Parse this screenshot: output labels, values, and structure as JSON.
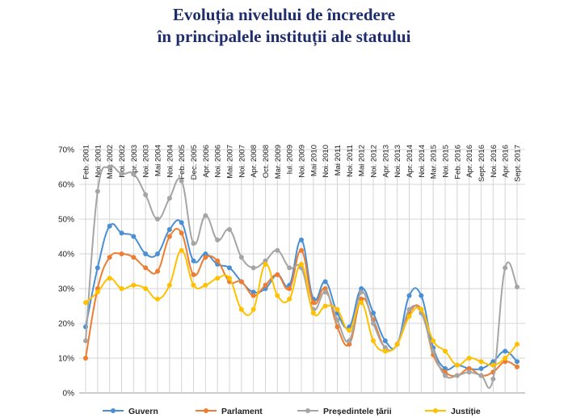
{
  "title_line1": "Evoluția nivelului de încredere",
  "title_line2": "în principalele instituții ale statului",
  "chart_data": {
    "type": "line",
    "title": "Evoluția nivelului de încredere în principalele instituții ale statului",
    "xlabel": "",
    "ylabel": "",
    "ylim": [
      0,
      70
    ],
    "yticks": [
      "0%",
      "10%",
      "20%",
      "30%",
      "40%",
      "50%",
      "60%",
      "70%"
    ],
    "grid": true,
    "legend_position": "bottom",
    "categories": [
      "Feb. 2001",
      "Noi. 2001",
      "Mar. 2002",
      "Noi. 2002",
      "Apr. 2003",
      "Noi. 2003",
      "Mai 2004",
      "Noi. 2004",
      "Feb. 2005",
      "Dec. 2005",
      "Apr. 2006",
      "Noi. 2006",
      "Mai. 2007",
      "Noi. 2007",
      "Apr. 2008",
      "Oct. 2008",
      "Mar. 2009",
      "Iul. 2009",
      "Noi. 2009",
      "Mai 2010",
      "Noi. 2010",
      "Mai 2011",
      "Noi. 2011",
      "Mai 2012",
      "Noi. 2012",
      "Apr. 2013",
      "Noi. 2013",
      "Apr. 2014",
      "Noi. 2014",
      "Mar. 2015",
      "Noi. 2015",
      "Feb. 2016",
      "Apr. 2016",
      "Sept. 2016",
      "Noi. 2016",
      "Apr. 2016",
      "Sept. 2017"
    ],
    "series": [
      {
        "name": "Guvern",
        "color": "#4a8fd1",
        "values": [
          19,
          36,
          48,
          46,
          45,
          40,
          40,
          47,
          49,
          38,
          40,
          37,
          36,
          32,
          29,
          30,
          34,
          31,
          44,
          27,
          32,
          23,
          19,
          30,
          23,
          15,
          14,
          28,
          28,
          13,
          7,
          8,
          7,
          7,
          9,
          12,
          9
        ]
      },
      {
        "name": "Parlament",
        "color": "#ed7d31",
        "values": [
          10,
          30,
          39,
          40,
          39,
          36,
          35,
          45,
          46,
          34,
          39,
          38,
          32,
          32,
          28,
          31,
          34,
          30,
          41,
          26,
          30,
          19,
          14,
          27,
          21,
          13,
          14,
          23,
          24,
          11,
          6,
          5,
          7,
          5,
          6,
          9,
          7.5
        ]
      },
      {
        "name": "Președintele țării",
        "color": "#a5a5a5",
        "values": [
          15,
          58,
          65,
          63,
          63,
          57,
          50,
          56,
          61,
          43,
          51,
          44,
          47,
          39,
          36,
          38,
          41,
          36,
          36,
          24,
          29,
          21,
          15,
          29,
          20,
          13,
          14,
          24,
          23,
          12,
          5,
          5,
          6,
          5,
          4,
          36,
          30.5
        ]
      },
      {
        "name": "Justiție",
        "color": "#ffc000",
        "values": [
          26,
          29,
          33,
          30,
          31,
          30,
          27,
          31,
          41,
          31,
          31,
          33,
          33,
          24,
          24,
          37,
          28,
          27,
          37,
          23,
          25,
          24,
          18,
          26,
          15,
          12,
          14,
          22,
          24,
          15,
          12,
          8,
          10,
          9,
          8,
          10,
          14
        ]
      }
    ]
  }
}
